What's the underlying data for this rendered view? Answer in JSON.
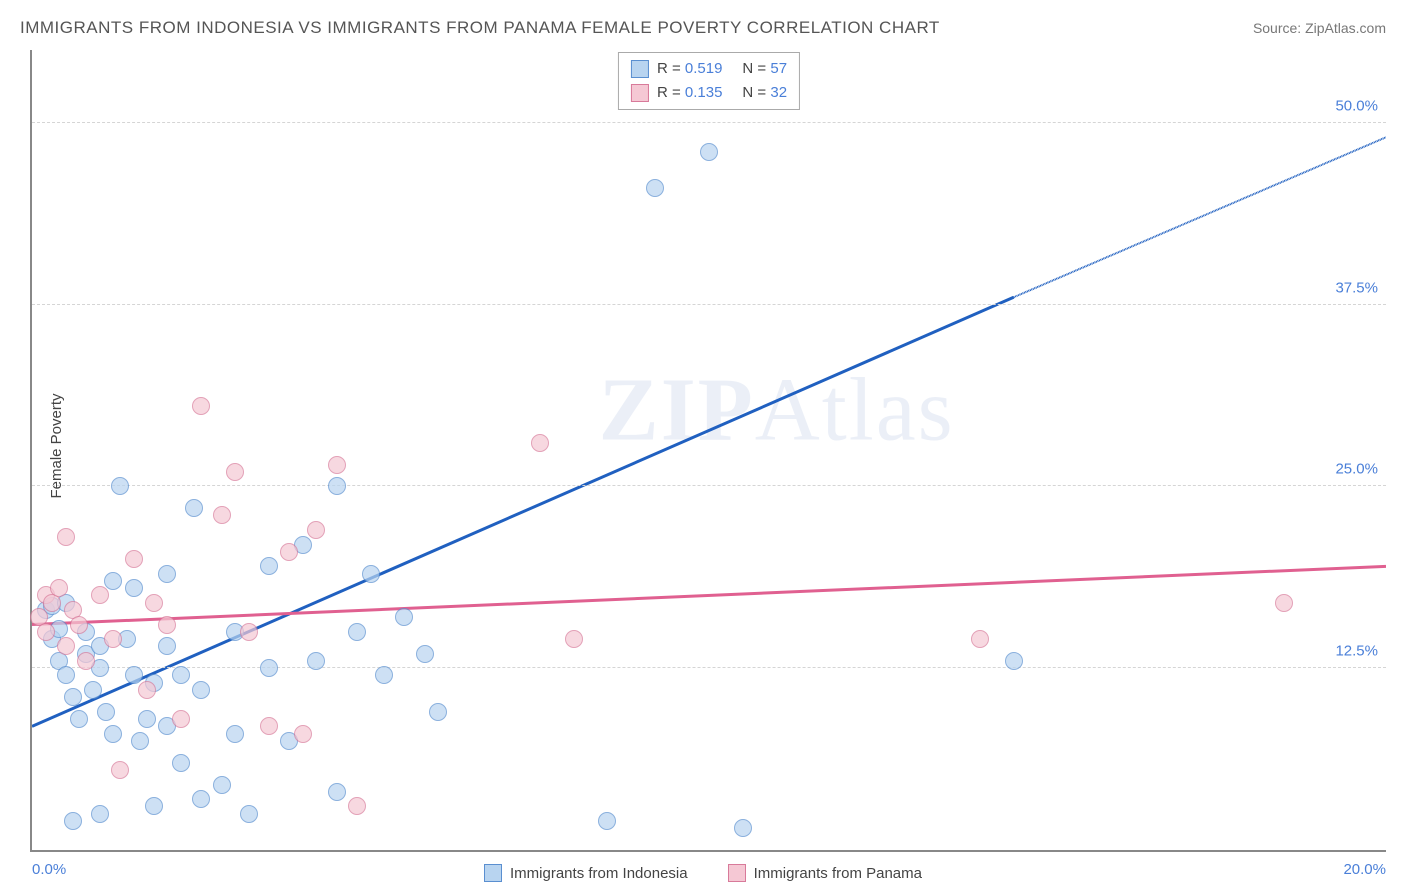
{
  "title": "IMMIGRANTS FROM INDONESIA VS IMMIGRANTS FROM PANAMA FEMALE POVERTY CORRELATION CHART",
  "source": "Source: ZipAtlas.com",
  "ylabel": "Female Poverty",
  "watermark": "ZIPAtlas",
  "chart": {
    "type": "scatter",
    "xlim": [
      0,
      20
    ],
    "ylim": [
      0,
      55
    ],
    "xticks": [
      {
        "v": 0,
        "label": "0.0%"
      },
      {
        "v": 20,
        "label": "20.0%"
      }
    ],
    "yticks": [
      {
        "v": 12.5,
        "label": "12.5%"
      },
      {
        "v": 25.0,
        "label": "25.0%"
      },
      {
        "v": 37.5,
        "label": "37.5%"
      },
      {
        "v": 50.0,
        "label": "50.0%"
      }
    ],
    "grid_color": "#d5d5d5",
    "background": "#ffffff",
    "series": [
      {
        "name": "Immigrants from Indonesia",
        "fill": "#b8d4f0",
        "stroke": "#5a8fd0",
        "line_color": "#2060c0",
        "R": 0.519,
        "N": 57,
        "trend": {
          "x1": 0,
          "y1": 8.5,
          "x2": 14.5,
          "y2": 38,
          "dash_x2": 20,
          "dash_y2": 49
        },
        "points": [
          [
            0.2,
            16.5
          ],
          [
            0.3,
            16.8
          ],
          [
            0.3,
            14.5
          ],
          [
            0.4,
            15.2
          ],
          [
            0.5,
            17.0
          ],
          [
            0.4,
            13.0
          ],
          [
            0.5,
            12.0
          ],
          [
            0.6,
            10.5
          ],
          [
            0.7,
            9.0
          ],
          [
            0.8,
            13.5
          ],
          [
            0.8,
            15.0
          ],
          [
            0.9,
            11.0
          ],
          [
            1.0,
            14.0
          ],
          [
            1.0,
            12.5
          ],
          [
            1.1,
            9.5
          ],
          [
            1.2,
            8.0
          ],
          [
            1.2,
            18.5
          ],
          [
            1.3,
            25.0
          ],
          [
            0.6,
            2.0
          ],
          [
            1.0,
            2.5
          ],
          [
            1.4,
            14.5
          ],
          [
            1.5,
            18.0
          ],
          [
            1.5,
            12.0
          ],
          [
            1.6,
            7.5
          ],
          [
            1.7,
            9.0
          ],
          [
            1.8,
            11.5
          ],
          [
            1.8,
            3.0
          ],
          [
            2.0,
            19.0
          ],
          [
            2.0,
            14.0
          ],
          [
            2.0,
            8.5
          ],
          [
            2.2,
            12.0
          ],
          [
            2.2,
            6.0
          ],
          [
            2.4,
            23.5
          ],
          [
            2.5,
            11.0
          ],
          [
            2.5,
            3.5
          ],
          [
            2.8,
            4.5
          ],
          [
            3.0,
            15.0
          ],
          [
            3.0,
            8.0
          ],
          [
            3.2,
            2.5
          ],
          [
            3.5,
            19.5
          ],
          [
            3.5,
            12.5
          ],
          [
            3.8,
            7.5
          ],
          [
            4.0,
            21.0
          ],
          [
            4.2,
            13.0
          ],
          [
            4.5,
            25.0
          ],
          [
            4.5,
            4.0
          ],
          [
            4.8,
            15.0
          ],
          [
            5.0,
            19.0
          ],
          [
            5.2,
            12.0
          ],
          [
            5.5,
            16.0
          ],
          [
            5.8,
            13.5
          ],
          [
            6.0,
            9.5
          ],
          [
            8.5,
            2.0
          ],
          [
            9.2,
            45.5
          ],
          [
            10.0,
            48.0
          ],
          [
            10.5,
            1.5
          ],
          [
            14.5,
            13.0
          ]
        ]
      },
      {
        "name": "Immigrants from Panama",
        "fill": "#f5c8d4",
        "stroke": "#d87a9a",
        "line_color": "#e06090",
        "R": 0.135,
        "N": 32,
        "trend": {
          "x1": 0,
          "y1": 15.5,
          "x2": 20,
          "y2": 19.5
        },
        "points": [
          [
            0.1,
            16.0
          ],
          [
            0.2,
            17.5
          ],
          [
            0.2,
            15.0
          ],
          [
            0.3,
            17.0
          ],
          [
            0.4,
            18.0
          ],
          [
            0.5,
            14.0
          ],
          [
            0.5,
            21.5
          ],
          [
            0.6,
            16.5
          ],
          [
            0.7,
            15.5
          ],
          [
            0.8,
            13.0
          ],
          [
            1.0,
            17.5
          ],
          [
            1.2,
            14.5
          ],
          [
            1.3,
            5.5
          ],
          [
            1.5,
            20.0
          ],
          [
            1.7,
            11.0
          ],
          [
            1.8,
            17.0
          ],
          [
            2.0,
            15.5
          ],
          [
            2.2,
            9.0
          ],
          [
            2.5,
            30.5
          ],
          [
            2.8,
            23.0
          ],
          [
            3.0,
            26.0
          ],
          [
            3.2,
            15.0
          ],
          [
            3.5,
            8.5
          ],
          [
            3.8,
            20.5
          ],
          [
            4.2,
            22.0
          ],
          [
            4.5,
            26.5
          ],
          [
            4.8,
            3.0
          ],
          [
            7.5,
            28.0
          ],
          [
            8.0,
            14.5
          ],
          [
            14.0,
            14.5
          ],
          [
            18.5,
            17.0
          ],
          [
            4.0,
            8.0
          ]
        ]
      }
    ]
  },
  "legend_top": [
    {
      "sw_fill": "#b8d4f0",
      "sw_stroke": "#5a8fd0",
      "r": "0.519",
      "n": "57"
    },
    {
      "sw_fill": "#f5c8d4",
      "sw_stroke": "#d87a9a",
      "r": "0.135",
      "n": "32"
    }
  ],
  "legend_bottom": [
    {
      "sw_fill": "#b8d4f0",
      "sw_stroke": "#5a8fd0",
      "label": "Immigrants from Indonesia"
    },
    {
      "sw_fill": "#f5c8d4",
      "sw_stroke": "#d87a9a",
      "label": "Immigrants from Panama"
    }
  ]
}
